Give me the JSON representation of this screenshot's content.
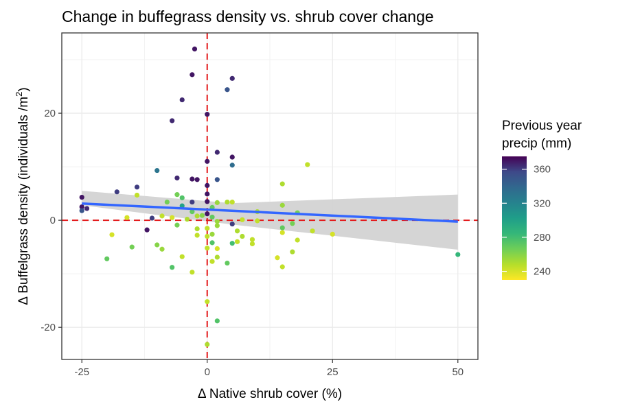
{
  "chart_data": {
    "type": "scatter",
    "title": "Change in buffegrass density vs. shrub cover change",
    "xlabel": "Δ Native shrub cover (%)",
    "ylabel_main": "Δ Buffelgrass density (individuals /m",
    "ylabel_sup": "2",
    "ylabel_close": ")",
    "xlim": [
      -29,
      54
    ],
    "ylim": [
      -26,
      35
    ],
    "x_ticks": [
      -25,
      0,
      25,
      50
    ],
    "x_tick_labels": [
      "-25",
      "0",
      "25",
      "50"
    ],
    "y_ticks": [
      -20,
      0,
      20
    ],
    "y_tick_labels": [
      "-20",
      "0",
      "20"
    ],
    "grid": true,
    "reference_lines": {
      "x": 0,
      "y": 0,
      "color": "#e31a1c",
      "style": "dashed"
    },
    "trend": {
      "method": "linear",
      "x_range": [
        -25,
        50
      ],
      "intercept": 2.0,
      "slope": -0.045,
      "ci_lower": [
        2.8,
        -0.8,
        -5.5
      ],
      "ci_upper": [
        5.5,
        3.2,
        4.8
      ],
      "ci_x": [
        -25,
        5,
        50
      ],
      "color": "#3366ff",
      "band_color": "#d3d3d3"
    },
    "legend": {
      "title_line1": "Previous year",
      "title_line2": "precip (mm)",
      "min": 230,
      "max": 375,
      "ticks": [
        240,
        280,
        320,
        360
      ],
      "tick_labels": [
        "240",
        "280",
        "320",
        "360"
      ],
      "placement": "right"
    },
    "colors": {
      "low": "#fde725",
      "mid": "#21918c",
      "high": "#440154",
      "accent_red": "#e31a1c",
      "trend_blue": "#3366ff"
    },
    "points": [
      {
        "x": -2.5,
        "y": 32,
        "p": 370
      },
      {
        "x": -3,
        "y": 27.2,
        "p": 370
      },
      {
        "x": 5,
        "y": 26.5,
        "p": 365
      },
      {
        "x": 4,
        "y": 24.4,
        "p": 350
      },
      {
        "x": -5,
        "y": 22.5,
        "p": 365
      },
      {
        "x": 0,
        "y": 19.8,
        "p": 370
      },
      {
        "x": -7,
        "y": 18.6,
        "p": 365
      },
      {
        "x": 2,
        "y": 12.7,
        "p": 365
      },
      {
        "x": 5,
        "y": 11.8,
        "p": 370
      },
      {
        "x": 0,
        "y": 11.0,
        "p": 370
      },
      {
        "x": 20,
        "y": 10.4,
        "p": 245
      },
      {
        "x": 5,
        "y": 10.3,
        "p": 335
      },
      {
        "x": -10,
        "y": 9.3,
        "p": 330
      },
      {
        "x": -6,
        "y": 7.9,
        "p": 365
      },
      {
        "x": -3,
        "y": 7.7,
        "p": 370
      },
      {
        "x": -2,
        "y": 7.6,
        "p": 370
      },
      {
        "x": 2,
        "y": 7.6,
        "p": 350
      },
      {
        "x": 0,
        "y": 6.5,
        "p": 370
      },
      {
        "x": 15,
        "y": 6.8,
        "p": 250
      },
      {
        "x": -14,
        "y": 6.2,
        "p": 360
      },
      {
        "x": -18,
        "y": 5.3,
        "p": 360
      },
      {
        "x": 0,
        "y": 4.9,
        "p": 370
      },
      {
        "x": -14,
        "y": 4.7,
        "p": 245
      },
      {
        "x": -6,
        "y": 4.8,
        "p": 265
      },
      {
        "x": -5,
        "y": 4.2,
        "p": 275
      },
      {
        "x": -25,
        "y": 4.3,
        "p": 370
      },
      {
        "x": 0,
        "y": 3.5,
        "p": 370
      },
      {
        "x": -3,
        "y": 3.4,
        "p": 360
      },
      {
        "x": -8,
        "y": 3.4,
        "p": 265
      },
      {
        "x": 2,
        "y": 3.3,
        "p": 255
      },
      {
        "x": 4,
        "y": 3.4,
        "p": 250
      },
      {
        "x": 5,
        "y": 3.4,
        "p": 245
      },
      {
        "x": 15,
        "y": 2.8,
        "p": 255
      },
      {
        "x": -5,
        "y": 2.7,
        "p": 300
      },
      {
        "x": -25,
        "y": 2.5,
        "p": 370
      },
      {
        "x": -24,
        "y": 2.2,
        "p": 365
      },
      {
        "x": -25,
        "y": 1.8,
        "p": 350
      },
      {
        "x": 1,
        "y": 2.4,
        "p": 270
      },
      {
        "x": -3,
        "y": 1.6,
        "p": 270
      },
      {
        "x": 0,
        "y": 1.2,
        "p": 370
      },
      {
        "x": 10,
        "y": 1.6,
        "p": 250
      },
      {
        "x": 18,
        "y": 1.4,
        "p": 265
      },
      {
        "x": -2,
        "y": 0.8,
        "p": 250
      },
      {
        "x": -1,
        "y": 0.9,
        "p": 260
      },
      {
        "x": 1,
        "y": 0.6,
        "p": 270
      },
      {
        "x": -16,
        "y": 0.5,
        "p": 240
      },
      {
        "x": -11,
        "y": 0.4,
        "p": 360
      },
      {
        "x": -9,
        "y": 0.8,
        "p": 245
      },
      {
        "x": -7,
        "y": 0.5,
        "p": 240
      },
      {
        "x": -4,
        "y": 0.2,
        "p": 250
      },
      {
        "x": 2,
        "y": -0.2,
        "p": 255
      },
      {
        "x": 7,
        "y": 0.1,
        "p": 245
      },
      {
        "x": 10,
        "y": -0.1,
        "p": 245
      },
      {
        "x": 17,
        "y": -0.6,
        "p": 265
      },
      {
        "x": 5,
        "y": -0.7,
        "p": 360
      },
      {
        "x": -6,
        "y": -0.9,
        "p": 265
      },
      {
        "x": 2,
        "y": -1.0,
        "p": 255
      },
      {
        "x": -12,
        "y": -1.8,
        "p": 370
      },
      {
        "x": 15,
        "y": -1.4,
        "p": 270
      },
      {
        "x": 0,
        "y": -1.5,
        "p": 245
      },
      {
        "x": -2,
        "y": -1.6,
        "p": 250
      },
      {
        "x": -19,
        "y": -2.7,
        "p": 240
      },
      {
        "x": 6,
        "y": -2.0,
        "p": 250
      },
      {
        "x": 21,
        "y": -2.0,
        "p": 245
      },
      {
        "x": 15,
        "y": -2.3,
        "p": 240
      },
      {
        "x": 25,
        "y": -2.6,
        "p": 240
      },
      {
        "x": 1,
        "y": -2.6,
        "p": 255
      },
      {
        "x": -2,
        "y": -2.8,
        "p": 245
      },
      {
        "x": 7,
        "y": -3.0,
        "p": 250
      },
      {
        "x": 0,
        "y": -3.0,
        "p": 245
      },
      {
        "x": 9,
        "y": -3.6,
        "p": 245
      },
      {
        "x": 18,
        "y": -3.7,
        "p": 245
      },
      {
        "x": 6,
        "y": -4.0,
        "p": 245
      },
      {
        "x": 1,
        "y": -4.2,
        "p": 275
      },
      {
        "x": 5,
        "y": -4.3,
        "p": 280
      },
      {
        "x": 9,
        "y": -4.4,
        "p": 245
      },
      {
        "x": -10,
        "y": -4.6,
        "p": 260
      },
      {
        "x": -15,
        "y": -5.0,
        "p": 265
      },
      {
        "x": 0,
        "y": -5.2,
        "p": 245
      },
      {
        "x": -9,
        "y": -5.4,
        "p": 255
      },
      {
        "x": 2,
        "y": -5.3,
        "p": 240
      },
      {
        "x": 17,
        "y": -5.9,
        "p": 250
      },
      {
        "x": -5,
        "y": -6.8,
        "p": 245
      },
      {
        "x": 2,
        "y": -6.9,
        "p": 250
      },
      {
        "x": 14,
        "y": -7.0,
        "p": 240
      },
      {
        "x": -20,
        "y": -7.2,
        "p": 270
      },
      {
        "x": 1,
        "y": -7.7,
        "p": 245
      },
      {
        "x": 4,
        "y": -8.0,
        "p": 270
      },
      {
        "x": -7,
        "y": -8.8,
        "p": 275
      },
      {
        "x": 15,
        "y": -8.7,
        "p": 245
      },
      {
        "x": -3,
        "y": -9.7,
        "p": 245
      },
      {
        "x": 50,
        "y": -6.4,
        "p": 285
      },
      {
        "x": 0,
        "y": -15.2,
        "p": 245
      },
      {
        "x": 2,
        "y": -18.8,
        "p": 275
      },
      {
        "x": 0,
        "y": -23.2,
        "p": 250
      }
    ]
  }
}
